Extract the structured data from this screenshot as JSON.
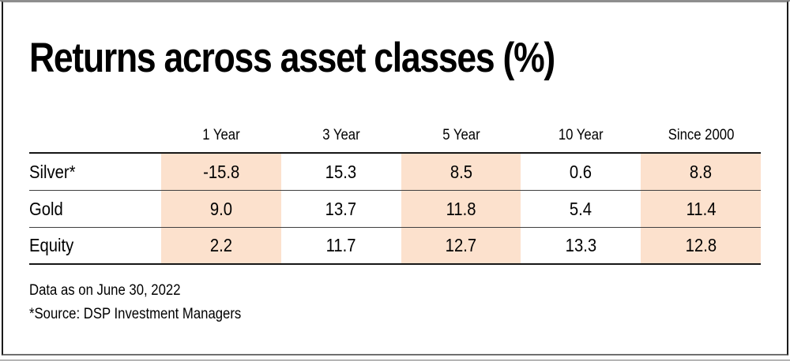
{
  "card": {
    "title": "Returns across asset classes (%)",
    "footnotes": {
      "line1": "Data as on June 30, 2022",
      "line2": "*Source: DSP Investment Managers"
    },
    "colors": {
      "highlight": "#fce1cd",
      "text": "#000000",
      "rule_thick": "#161616",
      "rule_thin": "#3f3f3f"
    }
  },
  "table": {
    "columns": [
      "1 Year",
      "3 Year",
      "5 Year",
      "10 Year",
      "Since 2000"
    ],
    "rows": [
      {
        "label": "Silver*",
        "values": [
          "-15.8",
          "15.3",
          "8.5",
          "0.6",
          "8.8"
        ]
      },
      {
        "label": "Gold",
        "values": [
          "9.0",
          "13.7",
          "11.8",
          "5.4",
          "11.4"
        ]
      },
      {
        "label": "Equity",
        "values": [
          "2.2",
          "11.7",
          "12.7",
          "13.3",
          "12.8"
        ]
      }
    ],
    "highlighted_columns": [
      "1 Year",
      "5 Year",
      "Since 2000"
    ]
  },
  "chart_data": {
    "type": "table",
    "title": "Returns across asset classes (%)",
    "categories": [
      "1 Year",
      "3 Year",
      "5 Year",
      "10 Year",
      "Since 2000"
    ],
    "series": [
      {
        "name": "Silver*",
        "values": [
          -15.8,
          15.3,
          8.5,
          0.6,
          8.8
        ]
      },
      {
        "name": "Gold",
        "values": [
          9.0,
          13.7,
          11.8,
          5.4,
          11.4
        ]
      },
      {
        "name": "Equity",
        "values": [
          2.2,
          11.7,
          12.7,
          13.3,
          12.8
        ]
      }
    ],
    "annotations": [
      "Data as on June 30, 2022",
      "*Source: DSP Investment Managers"
    ],
    "layout_hints": {
      "highlighted_columns": [
        "1 Year",
        "5 Year",
        "Since 2000"
      ],
      "highlight_color": "#fce1cd",
      "grid": "horizontal-rules-only",
      "legend": "none"
    }
  }
}
